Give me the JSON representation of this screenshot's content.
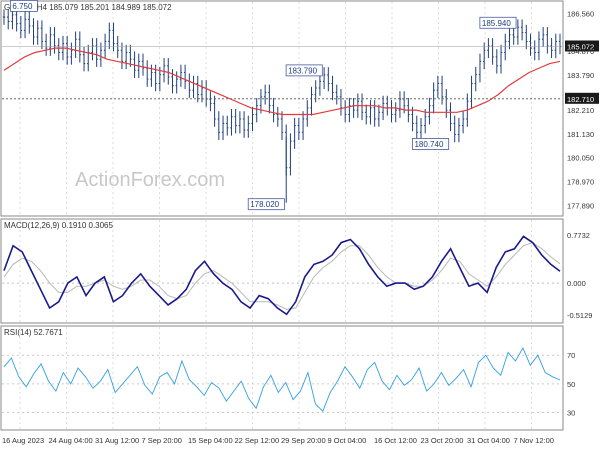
{
  "chart_data": [
    {
      "type": "candlestick",
      "title": "GBPJPY,H4  185.079 185.201 184.989 185.072",
      "series": [
        {
          "name": "price",
          "x_label_positions": "16 Aug 2023 .. 7 Nov 12:00",
          "values": [
            186.4,
            186.2,
            186.5,
            186.1,
            185.8,
            186.3,
            186.0,
            185.5,
            185.9,
            185.3,
            185.0,
            185.6,
            185.1,
            184.8,
            185.2,
            184.6,
            184.9,
            185.4,
            184.7,
            184.3,
            184.8,
            185.1,
            184.5,
            184.9,
            185.3,
            185.8,
            185.2,
            184.9,
            184.4,
            184.8,
            184.5,
            184.0,
            184.4,
            184.1,
            183.6,
            183.9,
            183.4,
            183.8,
            184.2,
            183.7,
            183.3,
            183.6,
            183.9,
            183.5,
            183.1,
            183.4,
            182.9,
            183.2,
            182.7,
            182.5,
            181.8,
            181.2,
            181.6,
            181.4,
            181.9,
            181.5,
            181.8,
            181.3,
            181.6,
            182.0,
            182.4,
            182.8,
            183.0,
            182.4,
            182.0,
            181.8,
            181.2,
            179.6,
            180.8,
            181.5,
            181.2,
            181.8,
            182.3,
            182.9,
            183.2,
            183.5,
            183.79,
            183.4,
            183.0,
            182.8,
            182.3,
            182.0,
            182.4,
            182.2,
            182.6,
            182.1,
            181.9,
            182.3,
            181.8,
            182.1,
            182.5,
            182.3,
            182.0,
            182.2,
            182.7,
            182.4,
            182.0,
            181.6,
            181.2,
            181.5,
            181.9,
            182.4,
            183.1,
            183.4,
            182.8,
            182.2,
            181.6,
            181.1,
            181.5,
            181.8,
            182.6,
            183.4,
            183.8,
            184.4,
            184.9,
            185.1,
            184.6,
            184.2,
            184.8,
            185.3,
            185.6,
            185.5,
            185.94,
            185.7,
            185.3,
            185.0,
            184.8,
            185.4,
            185.6,
            185.1,
            184.9,
            185.3,
            185.07
          ]
        },
        {
          "name": "ma",
          "values": [
            184.0,
            184.3,
            184.6,
            184.8,
            184.9,
            185.0,
            185.0,
            184.9,
            184.8,
            184.7,
            184.5,
            184.4,
            184.3,
            184.2,
            184.1,
            184.0,
            183.9,
            183.7,
            183.5,
            183.3,
            183.1,
            182.9,
            182.7,
            182.5,
            182.3,
            182.2,
            182.1,
            182.0,
            182.0,
            182.0,
            182.0,
            182.1,
            182.2,
            182.3,
            182.4,
            182.4,
            182.4,
            182.3,
            182.3,
            182.2,
            182.2,
            182.1,
            182.1,
            182.1,
            182.1,
            182.2,
            182.4,
            182.6,
            182.9,
            183.3,
            183.6,
            183.9,
            184.1,
            184.3,
            184.4
          ]
        }
      ],
      "annotations": [
        "6.750",
        "183.790",
        "185.940",
        "180.740",
        "178.020"
      ],
      "right_axis_labels": [
        "186.560",
        "185.072",
        "184.870",
        "183.790",
        "182.710",
        "182.210",
        "181.130",
        "180.050",
        "178.970",
        "177.890"
      ],
      "reference_line": 182.71,
      "ylim": [
        177.6,
        186.9
      ]
    },
    {
      "type": "line",
      "title": "MACD(12,26,9) 0.1910 0.3065",
      "series": [
        {
          "name": "macd",
          "values": [
            0.2,
            0.6,
            0.5,
            0.2,
            -0.1,
            -0.4,
            -0.3,
            0.0,
            0.1,
            -0.2,
            0.0,
            0.1,
            -0.3,
            -0.2,
            0.0,
            0.15,
            -0.05,
            -0.2,
            -0.35,
            -0.25,
            -0.1,
            0.2,
            0.35,
            0.15,
            0.0,
            -0.1,
            -0.3,
            -0.4,
            -0.2,
            -0.25,
            -0.4,
            -0.5,
            -0.3,
            0.1,
            0.3,
            0.35,
            0.45,
            0.65,
            0.7,
            0.55,
            0.3,
            0.1,
            -0.05,
            0.0,
            0.0,
            -0.1,
            -0.05,
            0.1,
            0.35,
            0.55,
            0.25,
            -0.05,
            0.0,
            -0.15,
            0.25,
            0.5,
            0.55,
            0.75,
            0.65,
            0.45,
            0.3,
            0.19
          ]
        },
        {
          "name": "signal",
          "values": [
            0.1,
            0.3,
            0.4,
            0.35,
            0.2,
            0.0,
            -0.15,
            -0.15,
            -0.05,
            -0.05,
            0.0,
            0.05,
            -0.05,
            -0.1,
            -0.05,
            0.05,
            0.05,
            -0.05,
            -0.2,
            -0.25,
            -0.2,
            0.0,
            0.15,
            0.2,
            0.1,
            0.0,
            -0.15,
            -0.3,
            -0.3,
            -0.3,
            -0.35,
            -0.42,
            -0.4,
            -0.15,
            0.1,
            0.25,
            0.35,
            0.5,
            0.6,
            0.6,
            0.45,
            0.25,
            0.1,
            0.0,
            0.0,
            -0.05,
            -0.05,
            0.05,
            0.2,
            0.4,
            0.35,
            0.15,
            0.05,
            -0.05,
            0.1,
            0.3,
            0.45,
            0.6,
            0.65,
            0.55,
            0.42,
            0.31
          ]
        }
      ],
      "right_axis_labels": [
        "0.7732",
        "0.000",
        "-0.5129"
      ],
      "ylim": [
        -0.56,
        0.82
      ]
    },
    {
      "type": "line",
      "title": "RSI(14) 52.7671",
      "series": [
        {
          "name": "rsi",
          "values": [
            62,
            68,
            55,
            48,
            57,
            64,
            52,
            45,
            58,
            50,
            61,
            55,
            47,
            52,
            60,
            44,
            50,
            56,
            62,
            49,
            43,
            55,
            58,
            50,
            66,
            53,
            48,
            42,
            51,
            47,
            38,
            45,
            52,
            40,
            33,
            48,
            56,
            44,
            51,
            39,
            45,
            58,
            36,
            31,
            44,
            52,
            62,
            55,
            47,
            60,
            65,
            52,
            46,
            56,
            49,
            53,
            61,
            45,
            50,
            58,
            49,
            54,
            60,
            48,
            65,
            70,
            61,
            56,
            72,
            66,
            75,
            63,
            70,
            58,
            55,
            52.77
          ]
        }
      ],
      "right_axis_labels": [
        "70",
        "50",
        "30"
      ],
      "ylim": [
        20,
        82
      ]
    }
  ],
  "watermark": "ActionForex.com",
  "x_axis_labels": [
    "16 Aug 2023",
    "24 Aug 04:00",
    "31 Aug 12:00",
    "7 Sep 20:00",
    "15 Sep 04:00",
    "22 Sep 12:00",
    "29 Sep 20:00",
    "9 Oct 04:00",
    "16 Oct 12:00",
    "23 Oct 20:00",
    "31 Oct 04:00",
    "7 Nov 12:00"
  ],
  "colors": {
    "price": "#1f3f7a",
    "ma": "#e23b3b",
    "macd": "#1a1a8c",
    "signal": "#b8b8b8",
    "rsi": "#33a0e0",
    "grid": "#c9c9c9",
    "annot_border": "#4a5aa0"
  }
}
